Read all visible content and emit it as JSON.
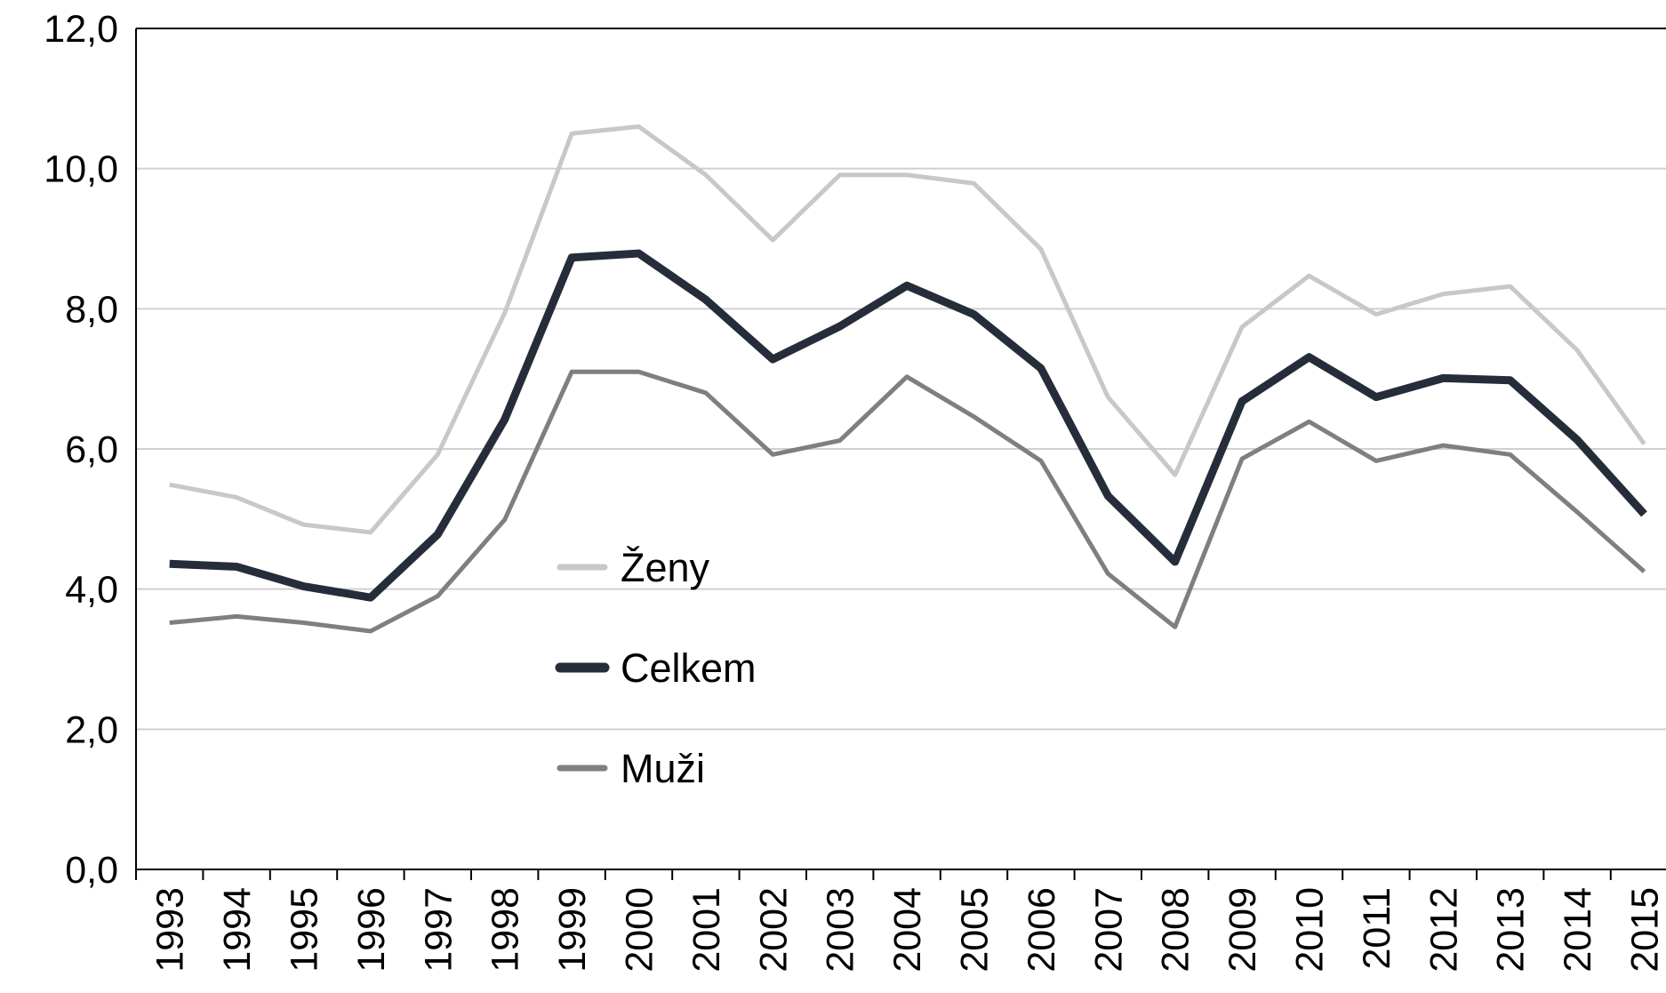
{
  "chart_data": {
    "type": "line",
    "categories": [
      "1993",
      "1994",
      "1995",
      "1996",
      "1997",
      "1998",
      "1999",
      "2000",
      "2001",
      "2002",
      "2003",
      "2004",
      "2005",
      "2006",
      "2007",
      "2008",
      "2009",
      "2010",
      "2011",
      "2012",
      "2013",
      "2014",
      "2015"
    ],
    "series": [
      {
        "name": "Ženy",
        "color": "#c8c8c8",
        "values": [
          5.49,
          5.31,
          4.92,
          4.81,
          5.92,
          7.94,
          10.5,
          10.6,
          9.91,
          8.98,
          9.91,
          9.91,
          9.79,
          8.85,
          6.74,
          5.63,
          7.74,
          8.47,
          7.92,
          8.21,
          8.32,
          7.41,
          6.07
        ]
      },
      {
        "name": "Celkem",
        "color": "#252d3a",
        "values": [
          4.36,
          4.32,
          4.04,
          3.88,
          4.78,
          6.42,
          8.73,
          8.79,
          8.13,
          7.28,
          7.75,
          8.33,
          7.92,
          7.15,
          5.33,
          4.39,
          6.68,
          7.31,
          6.74,
          7.01,
          6.98,
          6.13,
          5.07
        ]
      },
      {
        "name": "Muži",
        "color": "#7f7f7f",
        "values": [
          3.52,
          3.61,
          3.52,
          3.4,
          3.9,
          4.99,
          7.1,
          7.1,
          6.8,
          5.92,
          6.12,
          7.03,
          6.46,
          5.83,
          4.22,
          3.46,
          5.86,
          6.39,
          5.83,
          6.05,
          5.92,
          5.1,
          4.25
        ]
      }
    ],
    "ylim": [
      0,
      12
    ],
    "yticks": [
      {
        "value": 0,
        "label": "0,0"
      },
      {
        "value": 2,
        "label": "2,0"
      },
      {
        "value": 4,
        "label": "4,0"
      },
      {
        "value": 6,
        "label": "6,0"
      },
      {
        "value": 8,
        "label": "8,0"
      },
      {
        "value": 10,
        "label": "10,0"
      },
      {
        "value": 12,
        "label": "12,0"
      }
    ],
    "grid": true
  }
}
